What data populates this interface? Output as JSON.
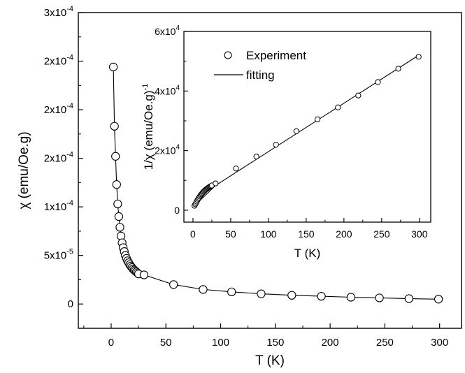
{
  "chart_data": [
    {
      "type": "line",
      "role": "main",
      "xlabel": "T (K)",
      "ylabel": "χ (emu/Oe.g)",
      "xlim": [
        -30,
        320
      ],
      "ylim": [
        -2.5e-05,
        0.0003
      ],
      "x_ticks": [
        0,
        50,
        100,
        150,
        200,
        250,
        300
      ],
      "x_tick_labels": [
        "0",
        "50",
        "100",
        "150",
        "200",
        "250",
        "300"
      ],
      "y_ticks": [
        0,
        5e-05,
        0.0001,
        0.00015,
        0.0002,
        0.00025,
        0.0003
      ],
      "y_tick_labels": [
        "0",
        "5x10-5",
        "1x10-4",
        "2x10-4",
        "2x10-4",
        "2x10-4",
        "3x10-4"
      ],
      "grid": false,
      "series": [
        {
          "marker": "open-circle",
          "line": "solid",
          "x": [
            2,
            3,
            4,
            5,
            6,
            7,
            8,
            9,
            10,
            11,
            12,
            13,
            14,
            15,
            16,
            17,
            18,
            19,
            20,
            21,
            22,
            23,
            24,
            25,
            30,
            57,
            84,
            110,
            137,
            165,
            192,
            219,
            245,
            272,
            299
          ],
          "y": [
            0.000244,
            0.000183,
            0.000152,
            0.000123,
            0.000103,
            9e-05,
            7.9e-05,
            7e-05,
            6.3e-05,
            5.8e-05,
            5.4e-05,
            5e-05,
            4.7e-05,
            4.45e-05,
            4.25e-05,
            4.05e-05,
            3.9e-05,
            3.75e-05,
            3.6e-05,
            3.5e-05,
            3.4e-05,
            3.3e-05,
            3.2e-05,
            3.1e-05,
            3e-05,
            2e-05,
            1.5e-05,
            1.25e-05,
            1.05e-05,
            9e-06,
            8e-06,
            7e-06,
            6.3e-06,
            5.5e-06,
            5e-06
          ]
        }
      ]
    },
    {
      "type": "scatter",
      "role": "inset",
      "xlabel": "T (K)",
      "ylabel": "1/χ (emu/Oe.g)⁻¹",
      "ylabel_parts": [
        "1/",
        "χ",
        " (emu/Oe.g)",
        "-1"
      ],
      "xlim": [
        -12,
        315
      ],
      "ylim": [
        -4000,
        60000
      ],
      "x_ticks": [
        0,
        50,
        100,
        150,
        200,
        250,
        300
      ],
      "x_tick_labels": [
        "0",
        "50",
        "100",
        "150",
        "200",
        "250",
        "300"
      ],
      "y_ticks": [
        0,
        20000,
        40000,
        60000
      ],
      "y_tick_labels": [
        "0",
        "2x10",
        "4x10",
        "6x10"
      ],
      "y_tick_exponent": "4",
      "grid": false,
      "legend": {
        "position": "top-left",
        "entries": [
          {
            "label": "Experiment",
            "symbol": "open-circle"
          },
          {
            "label": "fitting",
            "symbol": "line"
          }
        ]
      },
      "series": [
        {
          "name": "Experiment",
          "marker": "open-circle",
          "x": [
            2,
            3,
            4,
            5,
            6,
            7,
            8,
            9,
            10,
            11,
            12,
            13,
            14,
            15,
            16,
            17,
            18,
            19,
            20,
            21,
            22,
            23,
            24,
            25,
            30,
            57,
            84,
            110,
            137,
            165,
            192,
            219,
            245,
            272,
            299
          ],
          "y": [
            1500,
            2000,
            2400,
            2900,
            3400,
            3800,
            4200,
            4600,
            5000,
            5300,
            5600,
            5900,
            6200,
            6400,
            6700,
            6900,
            7100,
            7300,
            7500,
            7700,
            7800,
            8000,
            8100,
            8300,
            9000,
            14000,
            18000,
            22000,
            26500,
            30500,
            34500,
            38500,
            43000,
            47500,
            51500
          ]
        },
        {
          "name": "fitting",
          "line": "solid",
          "x": [
            0,
            30,
            299
          ],
          "y": [
            1000,
            8300,
            52000
          ]
        }
      ]
    }
  ]
}
